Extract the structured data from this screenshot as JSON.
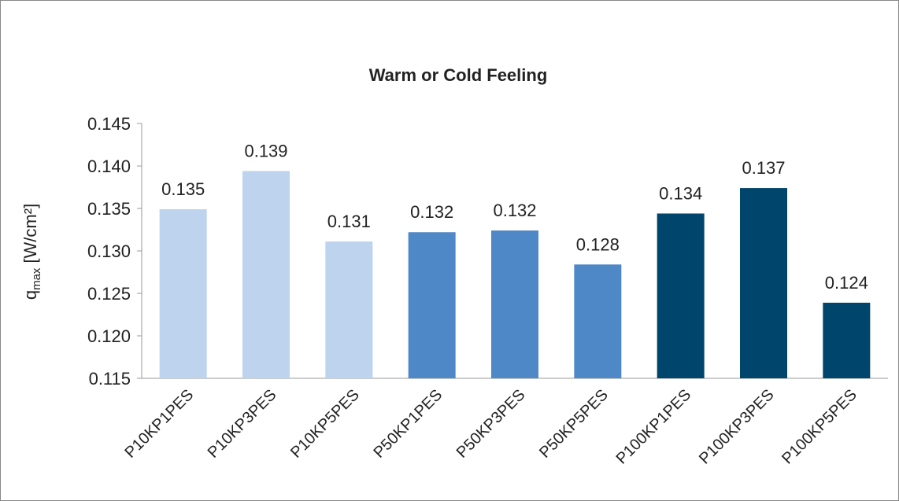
{
  "chart_data": {
    "type": "bar",
    "title": "Warm or Cold Feeling",
    "ylabel": {
      "base": "q",
      "subscript": "max",
      "unit": "[W/cm²]"
    },
    "categories": [
      "P10KP1PES",
      "P10KP3PES",
      "P10KP5PES",
      "P50KP1PES",
      "P50KP3PES",
      "P50KP5PES",
      "P100KP1PES",
      "P100KP3PES",
      "P100KP5PES"
    ],
    "values": [
      0.1349,
      0.1394,
      0.1311,
      0.1322,
      0.1324,
      0.1284,
      0.1344,
      0.1374,
      0.1239
    ],
    "value_labels": [
      "0.135",
      "0.139",
      "0.131",
      "0.132",
      "0.132",
      "0.128",
      "0.134",
      "0.137",
      "0.124"
    ],
    "colors": [
      "#bdd3ee",
      "#bdd3ee",
      "#bdd3ee",
      "#4f88c6",
      "#4f88c6",
      "#4f88c6",
      "#00456b",
      "#00456b",
      "#00456b"
    ],
    "ylim": [
      0.115,
      0.145
    ],
    "yticks": [
      0.115,
      {
        "value": 0.12,
        "label": "0.120"
      },
      0.125,
      {
        "value": 0.13,
        "label": "0.130"
      },
      0.135,
      {
        "value": 0.14,
        "label": "0.140"
      },
      0.145
    ],
    "grid": false
  }
}
